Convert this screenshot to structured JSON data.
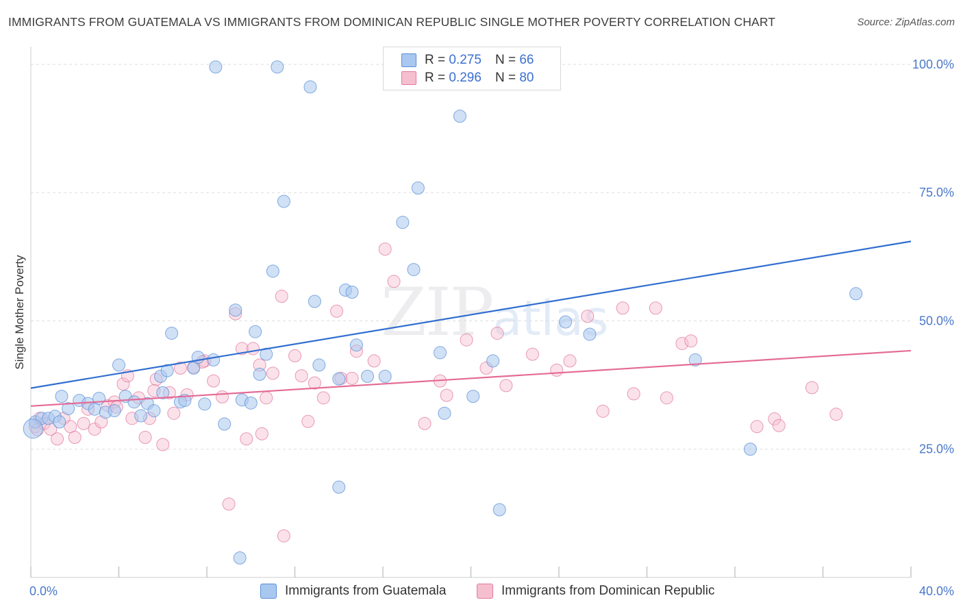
{
  "title": "IMMIGRANTS FROM GUATEMALA VS IMMIGRANTS FROM DOMINICAN REPUBLIC SINGLE MOTHER POVERTY CORRELATION CHART",
  "source": "Source: ZipAtlas.com",
  "watermark": {
    "main": "ZIP",
    "sub": "atlas"
  },
  "legend": {
    "rows": [
      {
        "r_label": "R =",
        "r_value": "0.275",
        "n_label": "N =",
        "n_value": "66"
      },
      {
        "r_label": "R =",
        "r_value": "0.296",
        "n_label": "N =",
        "n_value": "80"
      }
    ]
  },
  "bottom_legend": {
    "series1": "Immigrants from Guatemala",
    "series2": "Immigrants from Dominican Republic"
  },
  "colors": {
    "blue_fill": "#a9c8ef",
    "blue_stroke": "#5b8fd6",
    "blue_line": "#2f6fd0",
    "pink_fill": "#f6bfd0",
    "pink_stroke": "#e07a9f",
    "pink_line": "#e46b96",
    "tick_text": "#4a78c9"
  },
  "chart_data": {
    "type": "scatter",
    "title": "IMMIGRANTS FROM GUATEMALA VS IMMIGRANTS FROM DOMINICAN REPUBLIC SINGLE MOTHER POVERTY CORRELATION CHART",
    "xlabel": "",
    "ylabel": "Single Mother Poverty",
    "xlim": [
      0,
      40
    ],
    "ylim": [
      0,
      102
    ],
    "x_tick_labels": [
      "0.0%",
      "40.0%"
    ],
    "y_ticks": [
      25,
      50,
      75,
      100
    ],
    "y_tick_labels": [
      "25.0%",
      "50.0%",
      "75.0%",
      "100.0%"
    ],
    "grid": true,
    "series": [
      {
        "name": "Immigrants from Guatemala",
        "r": 0.275,
        "n": 66,
        "trend": {
          "x": [
            0,
            40
          ],
          "y": [
            36.9,
            65.5
          ]
        },
        "points": [
          [
            0.2,
            30.3
          ],
          [
            0.5,
            31.0
          ],
          [
            0.8,
            31.0
          ],
          [
            1.1,
            31.4
          ],
          [
            1.3,
            30.3
          ],
          [
            1.4,
            35.3
          ],
          [
            1.7,
            32.9
          ],
          [
            2.2,
            34.5
          ],
          [
            2.6,
            33.9
          ],
          [
            2.9,
            32.8
          ],
          [
            3.1,
            34.9
          ],
          [
            3.4,
            32.2
          ],
          [
            3.8,
            32.5
          ],
          [
            4.0,
            41.4
          ],
          [
            4.3,
            35.3
          ],
          [
            4.7,
            34.2
          ],
          [
            5.0,
            31.5
          ],
          [
            5.3,
            33.9
          ],
          [
            5.6,
            32.5
          ],
          [
            5.9,
            39.2
          ],
          [
            6.2,
            40.3
          ],
          [
            6.4,
            47.6
          ],
          [
            6.8,
            34.2
          ],
          [
            7.0,
            34.5
          ],
          [
            7.4,
            40.8
          ],
          [
            7.6,
            42.9
          ],
          [
            7.9,
            33.8
          ],
          [
            8.3,
            42.4
          ],
          [
            8.8,
            29.9
          ],
          [
            9.3,
            52.1
          ],
          [
            9.6,
            34.6
          ],
          [
            10.2,
            47.9
          ],
          [
            10.4,
            39.6
          ],
          [
            10.7,
            43.5
          ],
          [
            11.0,
            59.7
          ],
          [
            11.5,
            73.3
          ],
          [
            12.9,
            53.8
          ],
          [
            13.1,
            41.4
          ],
          [
            14.0,
            38.7
          ],
          [
            14.3,
            56.0
          ],
          [
            14.6,
            55.6
          ],
          [
            14.8,
            45.3
          ],
          [
            15.3,
            39.2
          ],
          [
            16.1,
            39.2
          ],
          [
            16.9,
            69.2
          ],
          [
            17.4,
            60.0
          ],
          [
            17.6,
            75.9
          ],
          [
            18.6,
            43.8
          ],
          [
            18.8,
            32.0
          ],
          [
            19.5,
            89.9
          ],
          [
            20.1,
            35.3
          ],
          [
            21.0,
            42.2
          ],
          [
            21.3,
            13.2
          ],
          [
            9.5,
            3.8
          ],
          [
            8.4,
            99.5
          ],
          [
            11.2,
            99.5
          ],
          [
            12.7,
            95.6
          ],
          [
            14.0,
            17.6
          ],
          [
            24.3,
            49.8
          ],
          [
            25.4,
            47.4
          ],
          [
            30.2,
            42.4
          ],
          [
            32.7,
            25.0
          ],
          [
            37.5,
            55.3
          ],
          [
            0.1,
            29.0
          ],
          [
            10.0,
            34.0
          ],
          [
            6.0,
            36.0
          ]
        ]
      },
      {
        "name": "Immigrants from Dominican Republic",
        "r": 0.296,
        "n": 80,
        "trend": {
          "x": [
            0,
            40
          ],
          "y": [
            33.4,
            44.2
          ]
        },
        "points": [
          [
            0.2,
            29.4
          ],
          [
            0.4,
            31.0
          ],
          [
            0.6,
            30.0
          ],
          [
            0.9,
            28.9
          ],
          [
            1.2,
            27.0
          ],
          [
            1.5,
            31.0
          ],
          [
            1.8,
            29.4
          ],
          [
            2.0,
            27.3
          ],
          [
            2.4,
            30.0
          ],
          [
            2.6,
            32.8
          ],
          [
            2.9,
            28.9
          ],
          [
            3.2,
            30.3
          ],
          [
            3.5,
            33.5
          ],
          [
            3.8,
            34.2
          ],
          [
            3.9,
            33.2
          ],
          [
            4.2,
            37.7
          ],
          [
            4.4,
            39.3
          ],
          [
            4.6,
            31.0
          ],
          [
            4.9,
            35.0
          ],
          [
            5.2,
            27.3
          ],
          [
            5.4,
            31.0
          ],
          [
            5.7,
            38.6
          ],
          [
            6.0,
            25.9
          ],
          [
            6.3,
            36.0
          ],
          [
            6.5,
            32.0
          ],
          [
            6.8,
            40.8
          ],
          [
            7.1,
            35.6
          ],
          [
            7.4,
            41.0
          ],
          [
            7.9,
            42.2
          ],
          [
            8.3,
            38.3
          ],
          [
            8.7,
            35.2
          ],
          [
            9.0,
            14.3
          ],
          [
            9.3,
            51.4
          ],
          [
            9.6,
            44.6
          ],
          [
            9.8,
            27.0
          ],
          [
            10.1,
            44.6
          ],
          [
            10.4,
            41.4
          ],
          [
            10.5,
            28.0
          ],
          [
            10.7,
            35.0
          ],
          [
            11.0,
            39.8
          ],
          [
            11.4,
            54.8
          ],
          [
            11.5,
            8.1
          ],
          [
            12.0,
            43.2
          ],
          [
            12.3,
            39.3
          ],
          [
            12.6,
            30.4
          ],
          [
            12.9,
            37.9
          ],
          [
            13.3,
            35.0
          ],
          [
            13.9,
            51.9
          ],
          [
            14.1,
            38.8
          ],
          [
            14.6,
            38.8
          ],
          [
            14.8,
            44.1
          ],
          [
            15.6,
            42.2
          ],
          [
            16.1,
            64.0
          ],
          [
            16.5,
            57.7
          ],
          [
            17.9,
            30.0
          ],
          [
            18.6,
            38.3
          ],
          [
            18.9,
            35.5
          ],
          [
            19.8,
            46.3
          ],
          [
            20.7,
            40.8
          ],
          [
            21.2,
            47.6
          ],
          [
            21.6,
            37.4
          ],
          [
            22.8,
            43.5
          ],
          [
            23.9,
            40.4
          ],
          [
            24.5,
            42.2
          ],
          [
            25.3,
            50.9
          ],
          [
            26.0,
            32.4
          ],
          [
            26.9,
            52.5
          ],
          [
            27.4,
            35.8
          ],
          [
            28.4,
            52.5
          ],
          [
            28.9,
            35.0
          ],
          [
            29.6,
            45.6
          ],
          [
            30.0,
            46.1
          ],
          [
            33.0,
            29.4
          ],
          [
            33.8,
            30.9
          ],
          [
            34.0,
            29.6
          ],
          [
            35.5,
            37.0
          ],
          [
            36.6,
            31.8
          ],
          [
            0.3,
            28.8
          ],
          [
            7.8,
            42.0
          ],
          [
            5.6,
            36.4
          ]
        ]
      }
    ]
  }
}
